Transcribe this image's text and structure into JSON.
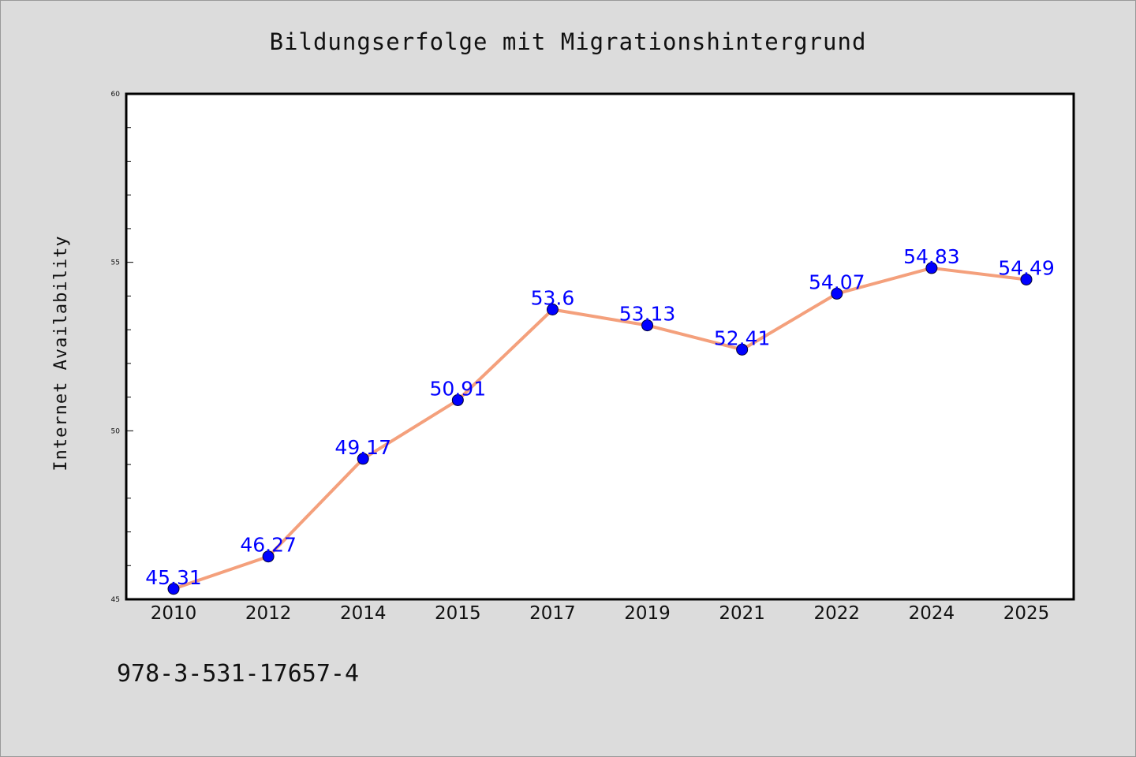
{
  "chart_data": {
    "type": "line",
    "title": "Bildungserfolge mit Migrationshintergrund",
    "xlabel": "",
    "ylabel": "Internet Availability",
    "categories": [
      "2010",
      "2012",
      "2014",
      "2015",
      "2017",
      "2019",
      "2021",
      "2022",
      "2024",
      "2025"
    ],
    "series": [
      {
        "values": [
          45.31,
          46.27,
          49.17,
          50.91,
          53.6,
          53.13,
          52.41,
          54.07,
          54.83,
          54.49
        ]
      }
    ],
    "data_labels": [
      "45.31",
      "46.27",
      "49.17",
      "50.91",
      "53.6",
      "53.13",
      "52.41",
      "54.07",
      "54.83",
      "54.49"
    ],
    "ylim": [
      45,
      60
    ],
    "yticks": [
      "45",
      "50",
      "55",
      "60"
    ],
    "grid": false,
    "legend": "none",
    "colors": {
      "line": "#f4a07c",
      "marker": "#0000ff",
      "label": "#0000ff",
      "background": "#dcdcdc",
      "plot_background": "#ffffff"
    }
  },
  "footer": {
    "isbn": "978-3-531-17657-4"
  }
}
